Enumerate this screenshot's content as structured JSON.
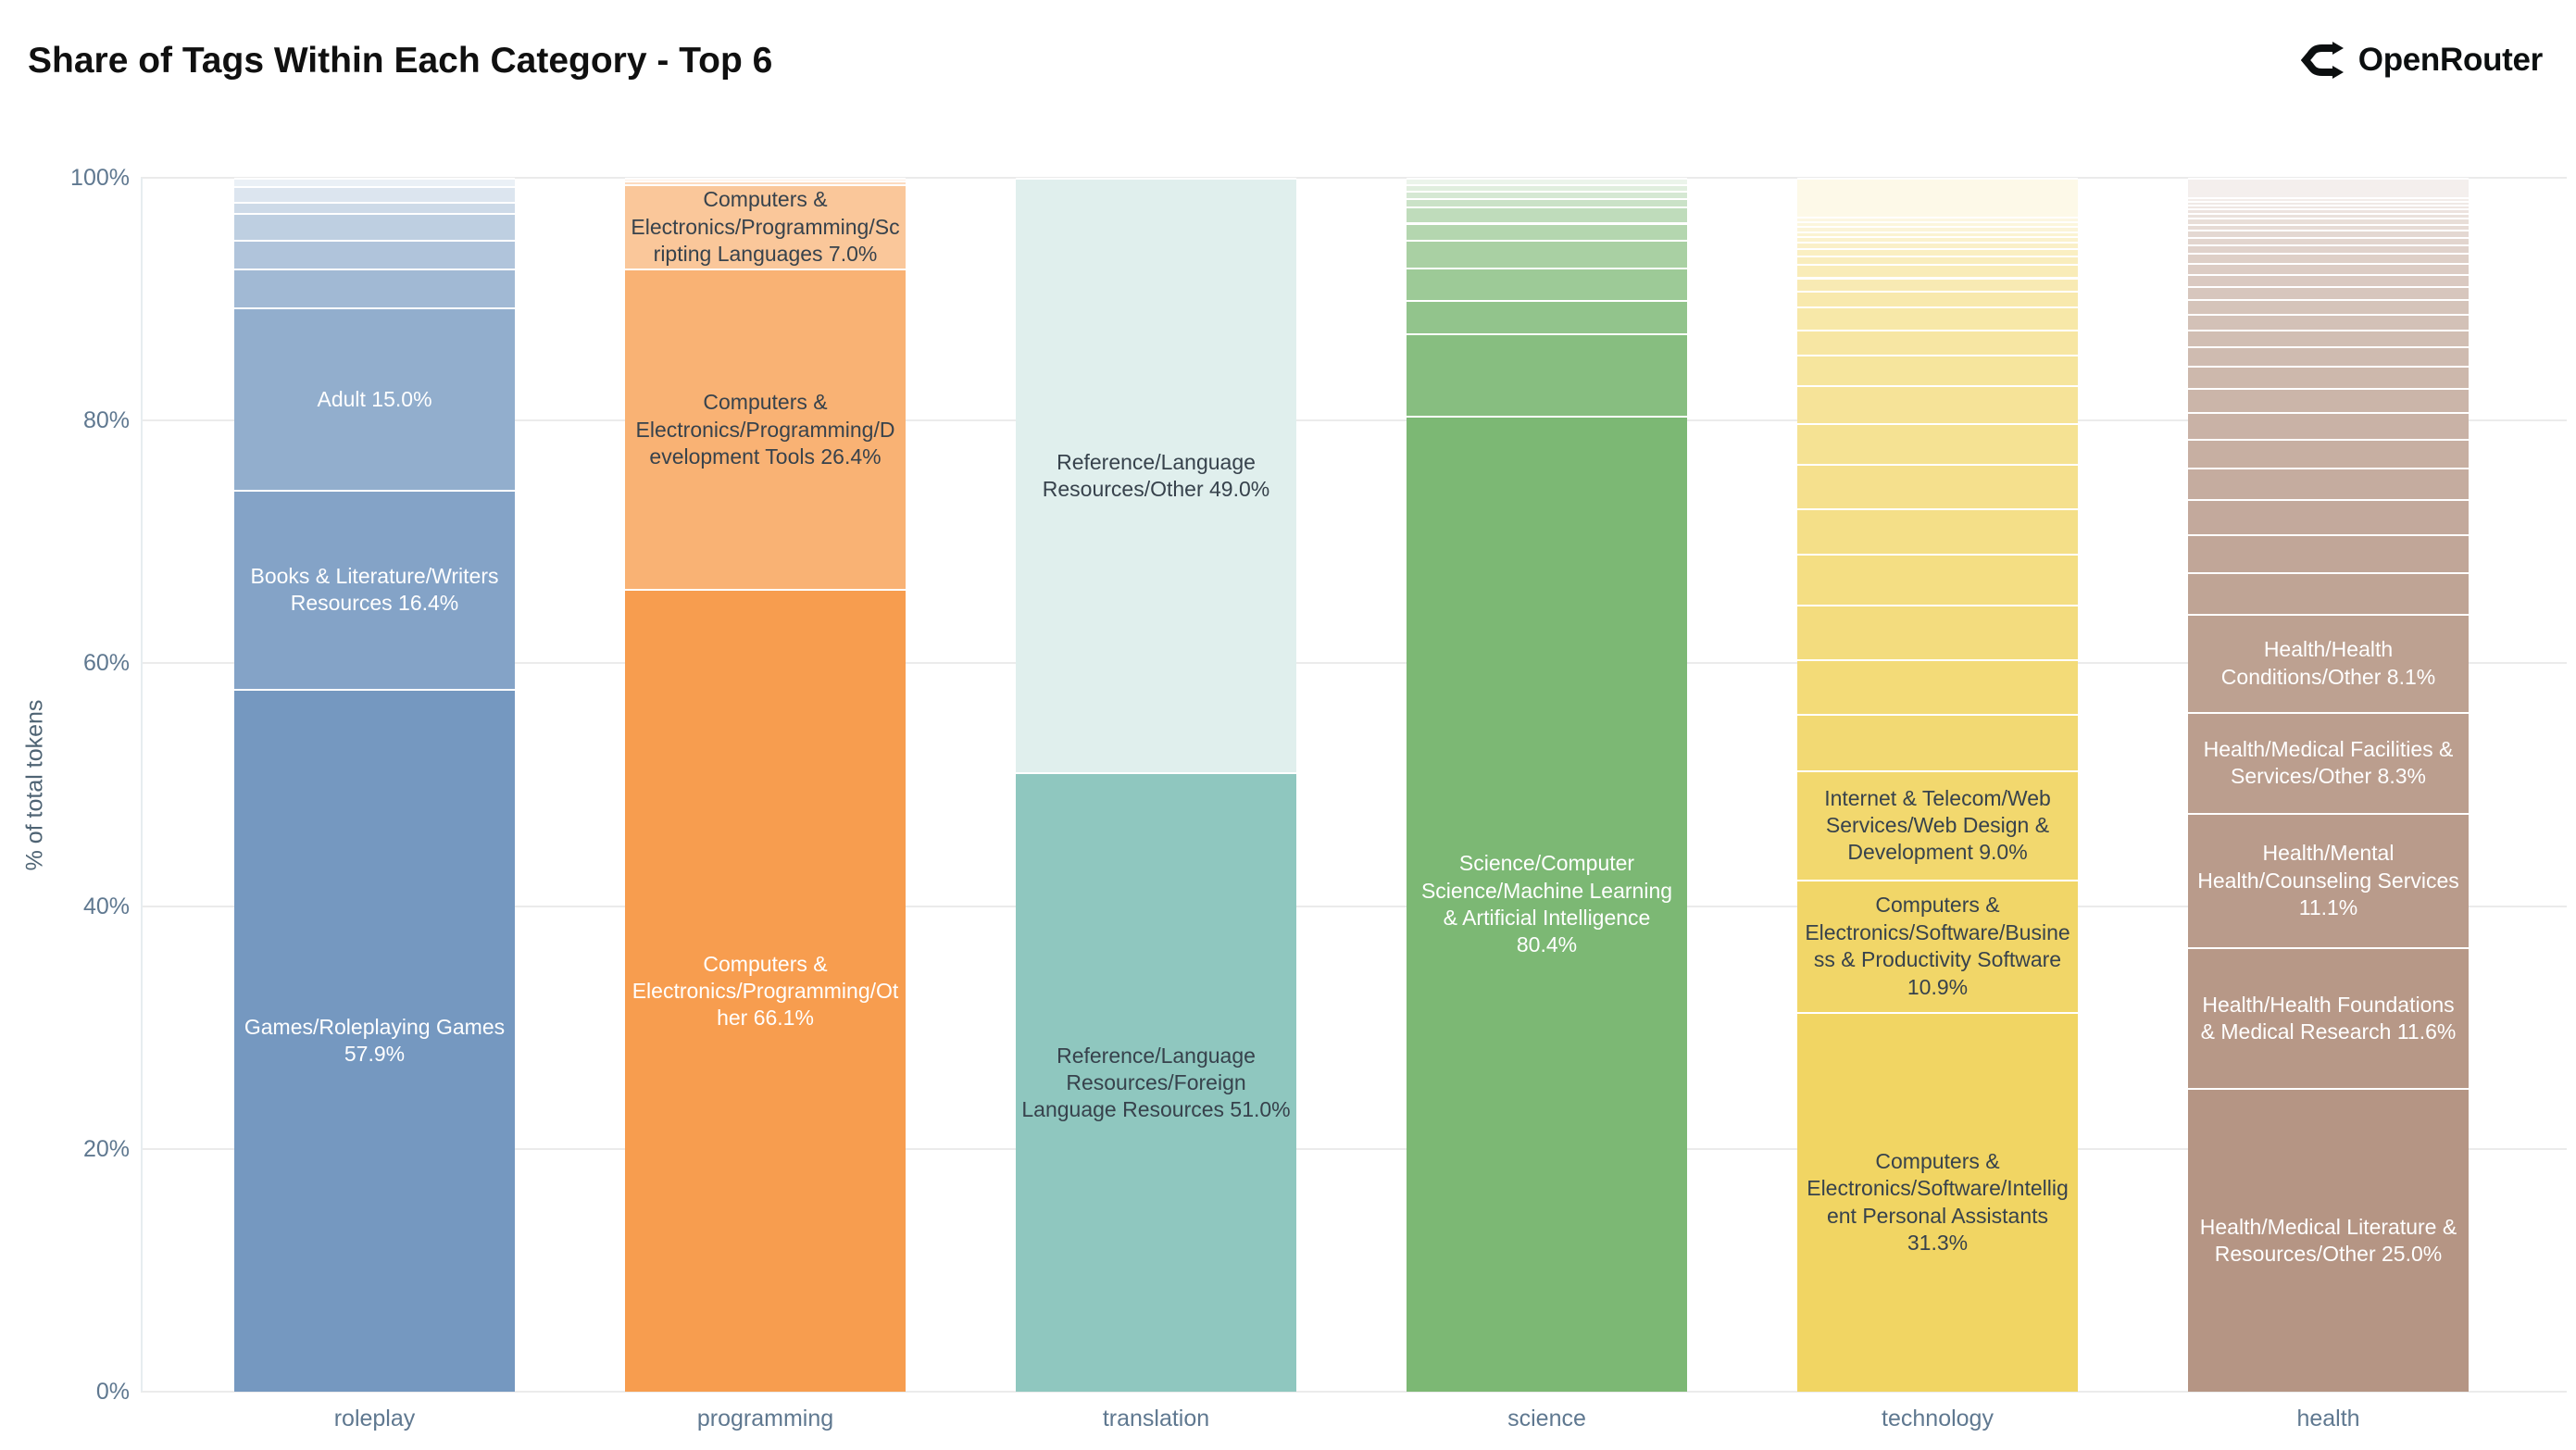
{
  "header": {
    "title": "Share of Tags Within Each Category - Top 6",
    "brand": "OpenRouter"
  },
  "theme": {
    "background": "#ffffff",
    "title_color": "#101010",
    "brand_color": "#0c0f10",
    "axis_text_color": "#5f7890",
    "y_title_color": "#4f6474",
    "gridline_color": "#ebebeb",
    "axis_line_color": "#e7edf0",
    "segment_divider_color": "#ffffff",
    "label_dark": "#37424c",
    "label_light": "#ffffff"
  },
  "chart_data": {
    "type": "bar",
    "stacked": true,
    "orientation": "vertical",
    "title": "Share of Tags Within Each Category - Top 6",
    "xlabel": "",
    "ylabel": "% of total tokens",
    "ylim": [
      0,
      100
    ],
    "ytick_values": [
      0,
      20,
      40,
      60,
      80,
      100
    ],
    "ytick_labels": [
      "0%",
      "20%",
      "40%",
      "60%",
      "80%",
      "100%"
    ],
    "grid": true,
    "legend": false,
    "segment_order": "bottom-to-top",
    "categories": [
      "roleplay",
      "programming",
      "translation",
      "science",
      "technology",
      "health"
    ],
    "bars": [
      {
        "category": "roleplay",
        "base_color": "#7598c0",
        "tint_max": 0.85,
        "segments": [
          {
            "value": 57.9,
            "tag": "Games/Roleplaying Games",
            "text": "Games/Roleplaying Games 57.9%",
            "text_color": "light"
          },
          {
            "value": 16.4,
            "tag": "Books & Literature/Writers Resources",
            "text": "Books & Literature/Writers Resources 16.4%",
            "text_color": "light"
          },
          {
            "value": 15.0,
            "tag": "Adult",
            "text": "Adult 15.0%",
            "text_color": "light"
          },
          {
            "value": 3.2
          },
          {
            "value": 2.4
          },
          {
            "value": 2.2
          },
          {
            "value": 0.9
          },
          {
            "value": 1.3
          },
          {
            "value": 0.7
          }
        ]
      },
      {
        "category": "programming",
        "base_color": "#f79d4f",
        "tint_max": 0.85,
        "segments": [
          {
            "value": 66.1,
            "tag": "Computers & Electronics/Programming/Other",
            "text": "Computers & Electronics/Programming/Other 66.1%",
            "text_color": "light"
          },
          {
            "value": 26.4,
            "tag": "Computers & Electronics/Programming/Development Tools",
            "text": "Computers & Electronics/Programming/Development Tools 26.4%",
            "text_color": "dark"
          },
          {
            "value": 7.0,
            "tag": "Computers & Electronics/Programming/Scripting Languages",
            "text": "Computers & Electronics/Programming/Scripting Languages 7.0%",
            "text_color": "dark"
          },
          {
            "value": 0.3
          },
          {
            "value": 0.2
          }
        ]
      },
      {
        "category": "translation",
        "base_color": "#8fc7bf",
        "tint_max": 0.72,
        "segments": [
          {
            "value": 51.0,
            "tag": "Reference/Language Resources/Foreign Language Resources",
            "text": "Reference/Language Resources/Foreign Language Resources 51.0%",
            "text_color": "dark"
          },
          {
            "value": 49.0,
            "tag": "Reference/Language Resources/Other",
            "text": "Reference/Language Resources/Other 49.0%",
            "text_color": "dark"
          }
        ]
      },
      {
        "category": "science",
        "base_color": "#7cb874",
        "tint_max": 0.85,
        "segments": [
          {
            "value": 80.4,
            "tag": "Science/Computer Science/Machine Learning & Artificial Intelligence",
            "text": "Science/Computer Science/Machine Learning & Artificial Intelligence 80.4%",
            "text_color": "light"
          },
          {
            "value": 6.8
          },
          {
            "value": 2.7
          },
          {
            "value": 2.7
          },
          {
            "value": 2.3
          },
          {
            "value": 1.4
          },
          {
            "value": 1.3
          },
          {
            "value": 0.7
          },
          {
            "value": 0.6
          },
          {
            "value": 0.6
          },
          {
            "value": 0.5
          }
        ]
      },
      {
        "category": "technology",
        "base_color": "#f1d563",
        "tint_max": 0.85,
        "segments": [
          {
            "value": 31.3,
            "tag": "Computers & Electronics/Software/Intelligent Personal Assistants",
            "text": "Computers & Electronics/Software/Intelligent Personal Assistants 31.3%",
            "text_color": "dark"
          },
          {
            "value": 10.9,
            "tag": "Computers & Electronics/Software/Business & Productivity Software",
            "text": "Computers & Electronics/Software/Business & Productivity Software 10.9%",
            "text_color": "dark"
          },
          {
            "value": 9.0,
            "tag": "Internet & Telecom/Web Services/Web Design & Development",
            "text": "Internet & Telecom/Web Services/Web Design & Development 9.0%",
            "text_color": "dark"
          },
          {
            "value": 4.6
          },
          {
            "value": 4.5
          },
          {
            "value": 4.5
          },
          {
            "value": 4.2
          },
          {
            "value": 3.8
          },
          {
            "value": 3.6
          },
          {
            "value": 3.4
          },
          {
            "value": 3.1
          },
          {
            "value": 2.5
          },
          {
            "value": 2.1
          },
          {
            "value": 1.9
          },
          {
            "value": 1.3
          },
          {
            "value": 1.1
          },
          {
            "value": 1.1
          },
          {
            "value": 0.7
          },
          {
            "value": 0.6
          },
          {
            "value": 0.5
          },
          {
            "value": 0.5
          },
          {
            "value": 0.4
          },
          {
            "value": 0.4
          },
          {
            "value": 0.4
          },
          {
            "value": 0.4
          },
          {
            "value": 3.2
          }
        ]
      },
      {
        "category": "health",
        "base_color": "#b59584",
        "tint_max": 0.85,
        "segments": [
          {
            "value": 25.0,
            "tag": "Health/Medical Literature & Resources/Other",
            "text": "Health/Medical Literature & Resources/Other 25.0%",
            "text_color": "light"
          },
          {
            "value": 11.6,
            "tag": "Health/Health Foundations & Medical Research",
            "text": "Health/Health Foundations & Medical Research 11.6%",
            "text_color": "light"
          },
          {
            "value": 11.1,
            "tag": "Health/Mental Health/Counseling Services",
            "text": "Health/Mental Health/Counseling Services 11.1%",
            "text_color": "light"
          },
          {
            "value": 8.3,
            "tag": "Health/Medical Facilities & Services/Other",
            "text": "Health/Medical Facilities & Services/Other 8.3%",
            "text_color": "light"
          },
          {
            "value": 8.1,
            "tag": "Health/Health Conditions/Other",
            "text": "Health/Health Conditions/Other 8.1%",
            "text_color": "light"
          },
          {
            "value": 3.4
          },
          {
            "value": 3.1
          },
          {
            "value": 2.9
          },
          {
            "value": 2.6
          },
          {
            "value": 2.4
          },
          {
            "value": 2.2
          },
          {
            "value": 2.0
          },
          {
            "value": 1.8
          },
          {
            "value": 1.6
          },
          {
            "value": 1.4
          },
          {
            "value": 1.3
          },
          {
            "value": 1.2
          },
          {
            "value": 1.1
          },
          {
            "value": 1.0
          },
          {
            "value": 0.9
          },
          {
            "value": 0.8
          },
          {
            "value": 0.7
          },
          {
            "value": 0.6
          },
          {
            "value": 0.6
          },
          {
            "value": 0.5
          },
          {
            "value": 0.5
          },
          {
            "value": 0.4
          },
          {
            "value": 0.4
          },
          {
            "value": 0.3
          },
          {
            "value": 0.3
          },
          {
            "value": 0.3
          },
          {
            "value": 1.6
          }
        ]
      }
    ]
  }
}
